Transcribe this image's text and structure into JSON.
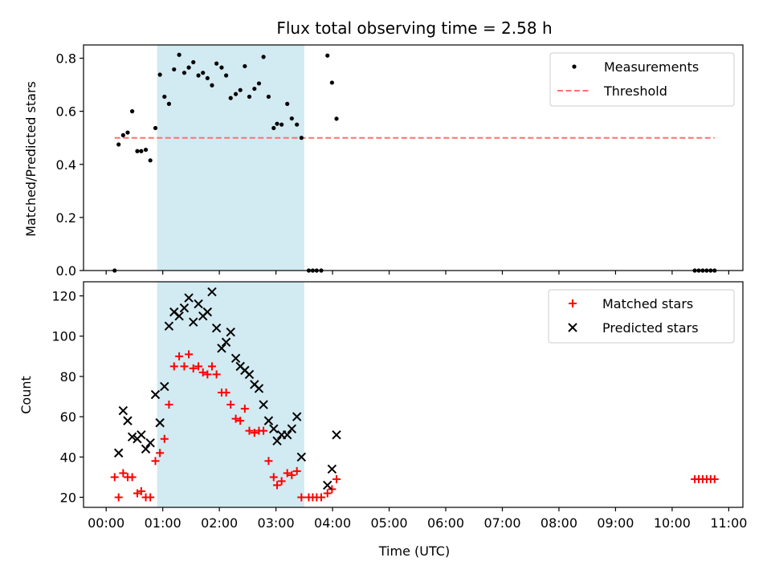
{
  "chart_data": [
    {
      "type": "scatter",
      "title": "Flux total observing time = 2.58 h",
      "ylabel": "Matched/Predicted stars",
      "xlabel": "",
      "x_unit": "hours (UTC)",
      "xlim": [
        -0.4,
        11.25
      ],
      "ylim": [
        0.0,
        0.85
      ],
      "yticks": [
        0.0,
        0.2,
        0.4,
        0.6,
        0.8
      ],
      "ytick_labels": [
        "0.0",
        "0.2",
        "0.4",
        "0.6",
        "0.8"
      ],
      "highlight_span": [
        0.9,
        3.5
      ],
      "highlight_color": "#add8e6",
      "legend_position": "top-right",
      "series": [
        {
          "name": "Measurements",
          "marker": "dot",
          "color": "#000000",
          "points": [
            [
              0.15,
              0.0
            ],
            [
              0.22,
              0.475
            ],
            [
              0.3,
              0.51
            ],
            [
              0.38,
              0.52
            ],
            [
              0.46,
              0.6
            ],
            [
              0.55,
              0.45
            ],
            [
              0.62,
              0.45
            ],
            [
              0.7,
              0.455
            ],
            [
              0.78,
              0.415
            ],
            [
              0.87,
              0.537
            ],
            [
              0.95,
              0.738
            ],
            [
              1.03,
              0.655
            ],
            [
              1.11,
              0.628
            ],
            [
              1.2,
              0.758
            ],
            [
              1.29,
              0.813
            ],
            [
              1.38,
              0.745
            ],
            [
              1.46,
              0.765
            ],
            [
              1.54,
              0.785
            ],
            [
              1.63,
              0.735
            ],
            [
              1.71,
              0.745
            ],
            [
              1.79,
              0.725
            ],
            [
              1.87,
              0.698
            ],
            [
              1.95,
              0.78
            ],
            [
              2.04,
              0.765
            ],
            [
              2.12,
              0.735
            ],
            [
              2.2,
              0.65
            ],
            [
              2.29,
              0.665
            ],
            [
              2.37,
              0.68
            ],
            [
              2.45,
              0.77
            ],
            [
              2.53,
              0.655
            ],
            [
              2.62,
              0.685
            ],
            [
              2.7,
              0.705
            ],
            [
              2.78,
              0.805
            ],
            [
              2.87,
              0.655
            ],
            [
              2.96,
              0.537
            ],
            [
              3.02,
              0.553
            ],
            [
              3.1,
              0.55
            ],
            [
              3.2,
              0.628
            ],
            [
              3.28,
              0.573
            ],
            [
              3.37,
              0.55
            ],
            [
              3.45,
              0.5
            ],
            [
              3.58,
              0.0
            ],
            [
              3.65,
              0.0
            ],
            [
              3.72,
              0.0
            ],
            [
              3.8,
              0.0
            ],
            [
              3.91,
              0.81
            ],
            [
              3.99,
              0.708
            ],
            [
              4.07,
              0.572
            ],
            [
              10.4,
              0.0
            ],
            [
              10.47,
              0.0
            ],
            [
              10.54,
              0.0
            ],
            [
              10.61,
              0.0
            ],
            [
              10.68,
              0.0
            ],
            [
              10.75,
              0.0
            ]
          ]
        },
        {
          "name": "Threshold",
          "style": "dashed",
          "color": "#ff7070",
          "x": [
            0.15,
            10.75
          ],
          "y": [
            0.5,
            0.5
          ]
        }
      ]
    },
    {
      "type": "scatter",
      "title": "",
      "ylabel": "Count",
      "xlabel": "Time (UTC)",
      "x_unit": "hours (UTC)",
      "xlim": [
        -0.4,
        11.25
      ],
      "ylim": [
        15,
        127
      ],
      "yticks": [
        20,
        40,
        60,
        80,
        100,
        120
      ],
      "ytick_labels": [
        "20",
        "40",
        "60",
        "80",
        "100",
        "120"
      ],
      "xticks": [
        0,
        1,
        2,
        3,
        4,
        5,
        6,
        7,
        8,
        9,
        10,
        11
      ],
      "xtick_labels": [
        "00:00",
        "01:00",
        "02:00",
        "03:00",
        "04:00",
        "05:00",
        "06:00",
        "07:00",
        "08:00",
        "09:00",
        "10:00",
        "11:00"
      ],
      "highlight_span": [
        0.9,
        3.5
      ],
      "highlight_color": "#add8e6",
      "legend_position": "top-right",
      "series": [
        {
          "name": "Matched stars",
          "marker": "plus",
          "color": "#ff0000",
          "points": [
            [
              0.15,
              30
            ],
            [
              0.22,
              20
            ],
            [
              0.3,
              32
            ],
            [
              0.38,
              30
            ],
            [
              0.46,
              30
            ],
            [
              0.55,
              22
            ],
            [
              0.62,
              23
            ],
            [
              0.7,
              20
            ],
            [
              0.78,
              20
            ],
            [
              0.87,
              38
            ],
            [
              0.95,
              42
            ],
            [
              1.03,
              49
            ],
            [
              1.11,
              66
            ],
            [
              1.2,
              85
            ],
            [
              1.29,
              90
            ],
            [
              1.38,
              85
            ],
            [
              1.46,
              91
            ],
            [
              1.54,
              84
            ],
            [
              1.63,
              85
            ],
            [
              1.71,
              82
            ],
            [
              1.79,
              81
            ],
            [
              1.87,
              85
            ],
            [
              1.95,
              81
            ],
            [
              2.04,
              72
            ],
            [
              2.12,
              72
            ],
            [
              2.2,
              66
            ],
            [
              2.29,
              59
            ],
            [
              2.37,
              58
            ],
            [
              2.45,
              64
            ],
            [
              2.53,
              53
            ],
            [
              2.62,
              52
            ],
            [
              2.7,
              53
            ],
            [
              2.78,
              53
            ],
            [
              2.87,
              38
            ],
            [
              2.96,
              30
            ],
            [
              3.02,
              26
            ],
            [
              3.1,
              28
            ],
            [
              3.2,
              32
            ],
            [
              3.28,
              31
            ],
            [
              3.37,
              33
            ],
            [
              3.45,
              20
            ],
            [
              3.58,
              20
            ],
            [
              3.65,
              20
            ],
            [
              3.72,
              20
            ],
            [
              3.8,
              20
            ],
            [
              3.91,
              22
            ],
            [
              3.99,
              24
            ],
            [
              4.07,
              29
            ],
            [
              10.4,
              29
            ],
            [
              10.47,
              29
            ],
            [
              10.54,
              29
            ],
            [
              10.61,
              29
            ],
            [
              10.68,
              29
            ],
            [
              10.75,
              29
            ]
          ]
        },
        {
          "name": "Predicted stars",
          "marker": "x",
          "color": "#000000",
          "points": [
            [
              0.22,
              42
            ],
            [
              0.3,
              63
            ],
            [
              0.38,
              58
            ],
            [
              0.46,
              50
            ],
            [
              0.55,
              49
            ],
            [
              0.62,
              51
            ],
            [
              0.7,
              44
            ],
            [
              0.78,
              47
            ],
            [
              0.87,
              71
            ],
            [
              0.95,
              57
            ],
            [
              1.03,
              75
            ],
            [
              1.11,
              105
            ],
            [
              1.2,
              112
            ],
            [
              1.29,
              110
            ],
            [
              1.38,
              114
            ],
            [
              1.46,
              119
            ],
            [
              1.54,
              107
            ],
            [
              1.63,
              116
            ],
            [
              1.71,
              110
            ],
            [
              1.79,
              112
            ],
            [
              1.87,
              122
            ],
            [
              1.95,
              104
            ],
            [
              2.04,
              94
            ],
            [
              2.12,
              97
            ],
            [
              2.2,
              102
            ],
            [
              2.29,
              89
            ],
            [
              2.37,
              85
            ],
            [
              2.45,
              83
            ],
            [
              2.53,
              81
            ],
            [
              2.62,
              76
            ],
            [
              2.7,
              74
            ],
            [
              2.78,
              66
            ],
            [
              2.87,
              58
            ],
            [
              2.96,
              54
            ],
            [
              3.02,
              48
            ],
            [
              3.1,
              51
            ],
            [
              3.2,
              51
            ],
            [
              3.28,
              54
            ],
            [
              3.37,
              60
            ],
            [
              3.45,
              40
            ],
            [
              3.91,
              26
            ],
            [
              3.99,
              34
            ],
            [
              4.07,
              51
            ]
          ]
        }
      ]
    }
  ]
}
